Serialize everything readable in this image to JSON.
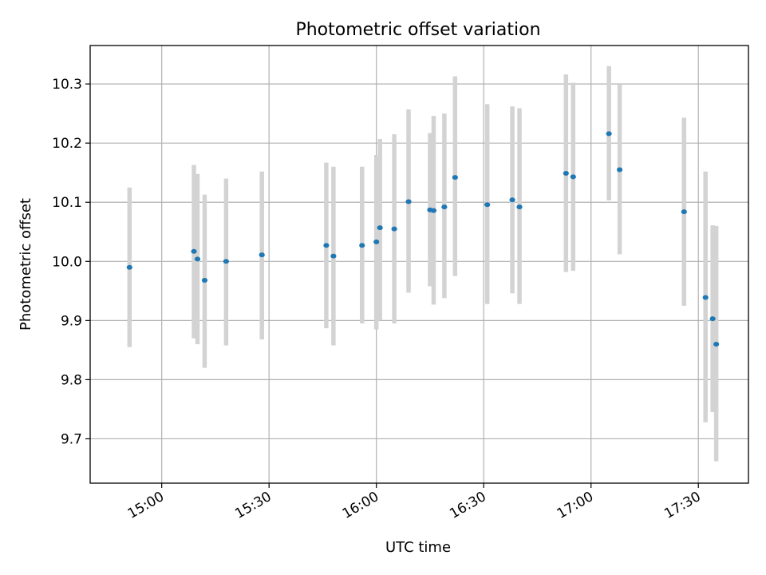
{
  "chart_data": {
    "type": "scatter",
    "title": "Photometric offset variation",
    "xlabel": "UTC time",
    "ylabel": "Photometric offset",
    "xlim": [
      "14:40",
      "17:44"
    ],
    "ylim": [
      9.625,
      10.365
    ],
    "x_ticks": [
      "15:00",
      "15:30",
      "16:00",
      "16:30",
      "17:00",
      "17:30"
    ],
    "y_ticks": [
      9.7,
      9.8,
      9.9,
      10.0,
      10.1,
      10.2,
      10.3
    ],
    "grid": true,
    "point_color": "#1f77b4",
    "errorbar_color": "#d3d3d3",
    "points": [
      {
        "time": "14:51",
        "y": 9.99,
        "low": 9.855,
        "high": 10.125
      },
      {
        "time": "15:09",
        "y": 10.017,
        "low": 9.87,
        "high": 10.163
      },
      {
        "time": "15:10",
        "y": 10.004,
        "low": 9.86,
        "high": 10.148
      },
      {
        "time": "15:12",
        "y": 9.968,
        "low": 9.82,
        "high": 10.113
      },
      {
        "time": "15:18",
        "y": 10.0,
        "low": 9.858,
        "high": 10.14
      },
      {
        "time": "15:28",
        "y": 10.011,
        "low": 9.868,
        "high": 10.152
      },
      {
        "time": "15:46",
        "y": 10.027,
        "low": 9.887,
        "high": 10.167
      },
      {
        "time": "15:48",
        "y": 10.009,
        "low": 9.858,
        "high": 10.16
      },
      {
        "time": "15:56",
        "y": 10.027,
        "low": 9.895,
        "high": 10.16
      },
      {
        "time": "16:00",
        "y": 10.033,
        "low": 9.885,
        "high": 10.18
      },
      {
        "time": "16:01",
        "y": 10.057,
        "low": 9.9,
        "high": 10.207
      },
      {
        "time": "16:05",
        "y": 10.055,
        "low": 9.895,
        "high": 10.215
      },
      {
        "time": "16:09",
        "y": 10.101,
        "low": 9.947,
        "high": 10.257
      },
      {
        "time": "16:15",
        "y": 10.087,
        "low": 9.958,
        "high": 10.217
      },
      {
        "time": "16:16",
        "y": 10.086,
        "low": 9.927,
        "high": 10.246
      },
      {
        "time": "16:19",
        "y": 10.092,
        "low": 9.938,
        "high": 10.25
      },
      {
        "time": "16:22",
        "y": 10.142,
        "low": 9.975,
        "high": 10.313
      },
      {
        "time": "16:31",
        "y": 10.096,
        "low": 9.928,
        "high": 10.266
      },
      {
        "time": "16:38",
        "y": 10.104,
        "low": 9.946,
        "high": 10.262
      },
      {
        "time": "16:40",
        "y": 10.092,
        "low": 9.928,
        "high": 10.259
      },
      {
        "time": "16:53",
        "y": 10.149,
        "low": 9.982,
        "high": 10.316
      },
      {
        "time": "16:55",
        "y": 10.143,
        "low": 9.984,
        "high": 10.302
      },
      {
        "time": "17:05",
        "y": 10.216,
        "low": 10.103,
        "high": 10.33
      },
      {
        "time": "17:08",
        "y": 10.155,
        "low": 10.012,
        "high": 10.3
      },
      {
        "time": "17:26",
        "y": 10.084,
        "low": 9.925,
        "high": 10.243
      },
      {
        "time": "17:32",
        "y": 9.939,
        "low": 9.728,
        "high": 10.152
      },
      {
        "time": "17:34",
        "y": 9.903,
        "low": 9.745,
        "high": 10.061
      },
      {
        "time": "17:35",
        "y": 9.86,
        "low": 9.662,
        "high": 10.06
      }
    ]
  }
}
